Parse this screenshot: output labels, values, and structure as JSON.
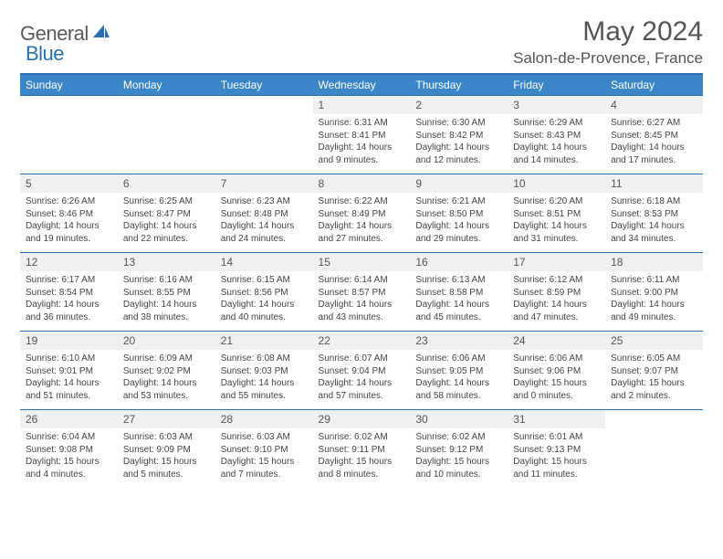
{
  "logo": {
    "text1": "General",
    "text2": "Blue"
  },
  "title": "May 2024",
  "location": "Salon-de-Provence, France",
  "colors": {
    "header_bg": "#3a86c8",
    "header_border": "#2b6fb0",
    "row_border": "#2b6fb0",
    "daynum_bg": "#eef0f2",
    "text": "#444444"
  },
  "weekdays": [
    "Sunday",
    "Monday",
    "Tuesday",
    "Wednesday",
    "Thursday",
    "Friday",
    "Saturday"
  ],
  "labels": {
    "sunrise": "Sunrise:",
    "sunset": "Sunset:",
    "daylight": "Daylight:"
  },
  "weeks": [
    [
      null,
      null,
      null,
      {
        "d": "1",
        "sr": "6:31 AM",
        "ss": "8:41 PM",
        "dl": "14 hours and 9 minutes."
      },
      {
        "d": "2",
        "sr": "6:30 AM",
        "ss": "8:42 PM",
        "dl": "14 hours and 12 minutes."
      },
      {
        "d": "3",
        "sr": "6:29 AM",
        "ss": "8:43 PM",
        "dl": "14 hours and 14 minutes."
      },
      {
        "d": "4",
        "sr": "6:27 AM",
        "ss": "8:45 PM",
        "dl": "14 hours and 17 minutes."
      }
    ],
    [
      {
        "d": "5",
        "sr": "6:26 AM",
        "ss": "8:46 PM",
        "dl": "14 hours and 19 minutes."
      },
      {
        "d": "6",
        "sr": "6:25 AM",
        "ss": "8:47 PM",
        "dl": "14 hours and 22 minutes."
      },
      {
        "d": "7",
        "sr": "6:23 AM",
        "ss": "8:48 PM",
        "dl": "14 hours and 24 minutes."
      },
      {
        "d": "8",
        "sr": "6:22 AM",
        "ss": "8:49 PM",
        "dl": "14 hours and 27 minutes."
      },
      {
        "d": "9",
        "sr": "6:21 AM",
        "ss": "8:50 PM",
        "dl": "14 hours and 29 minutes."
      },
      {
        "d": "10",
        "sr": "6:20 AM",
        "ss": "8:51 PM",
        "dl": "14 hours and 31 minutes."
      },
      {
        "d": "11",
        "sr": "6:18 AM",
        "ss": "8:53 PM",
        "dl": "14 hours and 34 minutes."
      }
    ],
    [
      {
        "d": "12",
        "sr": "6:17 AM",
        "ss": "8:54 PM",
        "dl": "14 hours and 36 minutes."
      },
      {
        "d": "13",
        "sr": "6:16 AM",
        "ss": "8:55 PM",
        "dl": "14 hours and 38 minutes."
      },
      {
        "d": "14",
        "sr": "6:15 AM",
        "ss": "8:56 PM",
        "dl": "14 hours and 40 minutes."
      },
      {
        "d": "15",
        "sr": "6:14 AM",
        "ss": "8:57 PM",
        "dl": "14 hours and 43 minutes."
      },
      {
        "d": "16",
        "sr": "6:13 AM",
        "ss": "8:58 PM",
        "dl": "14 hours and 45 minutes."
      },
      {
        "d": "17",
        "sr": "6:12 AM",
        "ss": "8:59 PM",
        "dl": "14 hours and 47 minutes."
      },
      {
        "d": "18",
        "sr": "6:11 AM",
        "ss": "9:00 PM",
        "dl": "14 hours and 49 minutes."
      }
    ],
    [
      {
        "d": "19",
        "sr": "6:10 AM",
        "ss": "9:01 PM",
        "dl": "14 hours and 51 minutes."
      },
      {
        "d": "20",
        "sr": "6:09 AM",
        "ss": "9:02 PM",
        "dl": "14 hours and 53 minutes."
      },
      {
        "d": "21",
        "sr": "6:08 AM",
        "ss": "9:03 PM",
        "dl": "14 hours and 55 minutes."
      },
      {
        "d": "22",
        "sr": "6:07 AM",
        "ss": "9:04 PM",
        "dl": "14 hours and 57 minutes."
      },
      {
        "d": "23",
        "sr": "6:06 AM",
        "ss": "9:05 PM",
        "dl": "14 hours and 58 minutes."
      },
      {
        "d": "24",
        "sr": "6:06 AM",
        "ss": "9:06 PM",
        "dl": "15 hours and 0 minutes."
      },
      {
        "d": "25",
        "sr": "6:05 AM",
        "ss": "9:07 PM",
        "dl": "15 hours and 2 minutes."
      }
    ],
    [
      {
        "d": "26",
        "sr": "6:04 AM",
        "ss": "9:08 PM",
        "dl": "15 hours and 4 minutes."
      },
      {
        "d": "27",
        "sr": "6:03 AM",
        "ss": "9:09 PM",
        "dl": "15 hours and 5 minutes."
      },
      {
        "d": "28",
        "sr": "6:03 AM",
        "ss": "9:10 PM",
        "dl": "15 hours and 7 minutes."
      },
      {
        "d": "29",
        "sr": "6:02 AM",
        "ss": "9:11 PM",
        "dl": "15 hours and 8 minutes."
      },
      {
        "d": "30",
        "sr": "6:02 AM",
        "ss": "9:12 PM",
        "dl": "15 hours and 10 minutes."
      },
      {
        "d": "31",
        "sr": "6:01 AM",
        "ss": "9:13 PM",
        "dl": "15 hours and 11 minutes."
      },
      null
    ]
  ]
}
